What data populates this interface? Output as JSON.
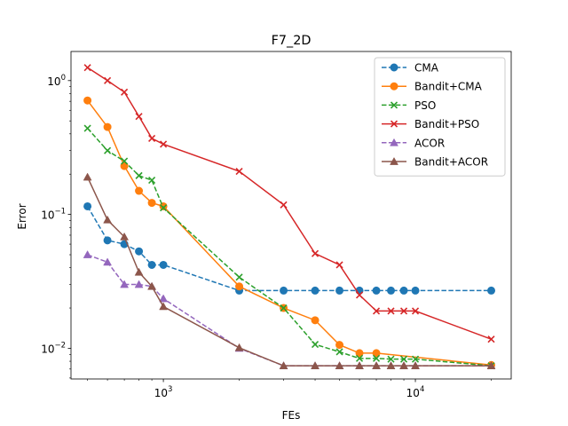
{
  "chart_data": {
    "type": "line",
    "title": "F7_2D",
    "xlabel": "FEs",
    "ylabel": "Error",
    "xscale": "log",
    "yscale": "log",
    "xlim": [
      430,
      24000
    ],
    "ylim": [
      0.0059,
      1.65
    ],
    "x_ticks": [
      {
        "value": 1000,
        "base": "10",
        "exp": "3"
      },
      {
        "value": 10000,
        "base": "10",
        "exp": "4"
      }
    ],
    "y_ticks": [
      {
        "value": 0.01,
        "base": "10",
        "exp": "−2"
      },
      {
        "value": 0.1,
        "base": "10",
        "exp": "−1"
      },
      {
        "value": 1,
        "base": "10",
        "exp": "0"
      }
    ],
    "legend_position": "top-right",
    "grid": false,
    "series": [
      {
        "name": "CMA",
        "color": "#1f77b4",
        "marker": "circle",
        "linestyle": "dashed",
        "x": [
          500,
          600,
          700,
          800,
          900,
          1000,
          2000,
          3000,
          4000,
          5000,
          6000,
          7000,
          8000,
          9000,
          10000,
          20000
        ],
        "y": [
          0.115,
          0.064,
          0.06,
          0.053,
          0.042,
          0.042,
          0.027,
          0.027,
          0.027,
          0.027,
          0.027,
          0.027,
          0.027,
          0.027,
          0.027,
          0.027
        ]
      },
      {
        "name": "Bandit+CMA",
        "color": "#ff7f0e",
        "marker": "circle",
        "linestyle": "solid",
        "x": [
          500,
          600,
          700,
          800,
          900,
          1000,
          2000,
          3000,
          4000,
          5000,
          6000,
          7000,
          20000
        ],
        "y": [
          0.71,
          0.45,
          0.23,
          0.15,
          0.122,
          0.115,
          0.029,
          0.02,
          0.0162,
          0.0106,
          0.0092,
          0.0092,
          0.0075
        ]
      },
      {
        "name": "PSO",
        "color": "#2ca02c",
        "marker": "x",
        "linestyle": "dashed",
        "x": [
          500,
          600,
          700,
          800,
          900,
          1000,
          2000,
          3000,
          4000,
          5000,
          6000,
          7000,
          8000,
          9000,
          10000,
          20000
        ],
        "y": [
          0.44,
          0.3,
          0.25,
          0.195,
          0.18,
          0.112,
          0.034,
          0.02,
          0.0107,
          0.0094,
          0.0084,
          0.0084,
          0.0083,
          0.0083,
          0.0083,
          0.0074
        ]
      },
      {
        "name": "Bandit+PSO",
        "color": "#d62728",
        "marker": "x",
        "linestyle": "solid",
        "x": [
          500,
          600,
          700,
          800,
          900,
          1000,
          2000,
          3000,
          4000,
          5000,
          6000,
          7000,
          8000,
          9000,
          10000,
          20000
        ],
        "y": [
          1.25,
          1.0,
          0.82,
          0.54,
          0.37,
          0.335,
          0.21,
          0.118,
          0.051,
          0.042,
          0.025,
          0.019,
          0.019,
          0.019,
          0.019,
          0.0117
        ]
      },
      {
        "name": "ACOR",
        "color": "#9467bd",
        "marker": "triangle",
        "linestyle": "dashed",
        "x": [
          500,
          600,
          700,
          800,
          900,
          1000,
          2000,
          3000,
          4000,
          5000,
          6000,
          7000,
          8000,
          9000,
          10000,
          20000
        ],
        "y": [
          0.05,
          0.044,
          0.03,
          0.03,
          0.029,
          0.0235,
          0.01,
          0.0074,
          0.0074,
          0.0074,
          0.0074,
          0.0074,
          0.0074,
          0.0074,
          0.0074,
          0.0074
        ]
      },
      {
        "name": "Bandit+ACOR",
        "color": "#8c564b",
        "marker": "triangle",
        "linestyle": "solid",
        "x": [
          500,
          600,
          700,
          800,
          900,
          1000,
          2000,
          3000,
          4000,
          5000,
          6000,
          7000,
          8000,
          9000,
          10000,
          20000
        ],
        "y": [
          0.19,
          0.091,
          0.068,
          0.037,
          0.029,
          0.0205,
          0.0101,
          0.0074,
          0.0074,
          0.0074,
          0.0074,
          0.0074,
          0.0074,
          0.0074,
          0.0074,
          0.0074
        ]
      }
    ]
  }
}
